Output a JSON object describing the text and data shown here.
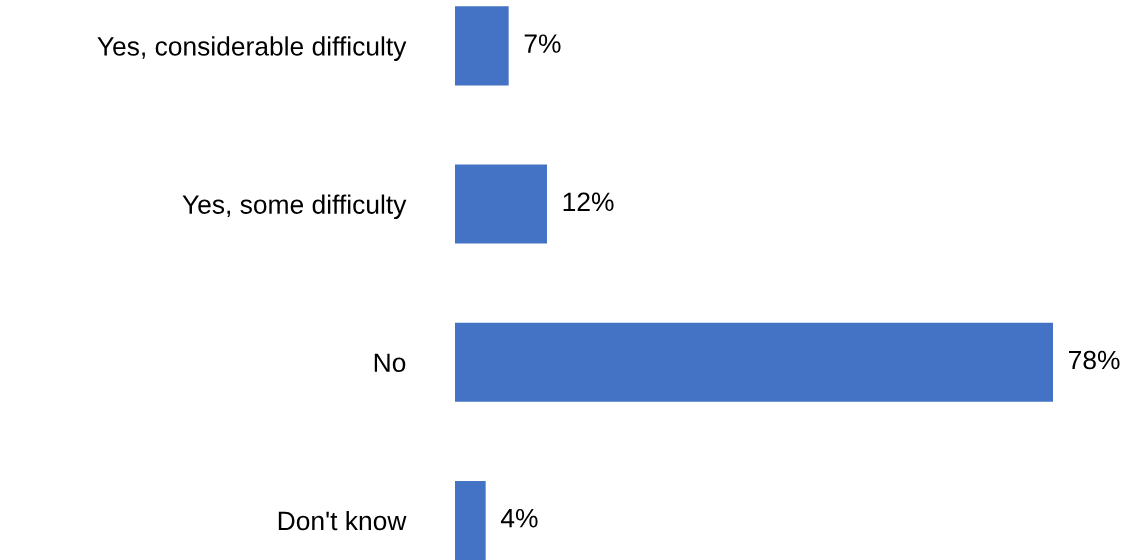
{
  "chart_data": {
    "type": "bar",
    "orientation": "horizontal",
    "categories": [
      "Yes, considerable difficulty",
      "Yes, some difficulty",
      "No",
      "Don't know"
    ],
    "values": [
      7,
      12,
      78,
      4
    ],
    "value_labels": [
      "7%",
      "12%",
      "78%",
      "4%"
    ],
    "color": "#4472c4",
    "grid": false,
    "legend": false
  }
}
